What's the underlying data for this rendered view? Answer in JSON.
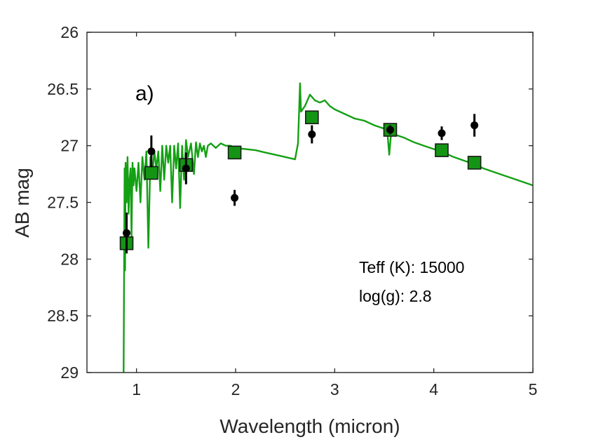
{
  "chart_data": {
    "type": "scatter",
    "panel_label": "a)",
    "xlabel": "Wavelength (micron)",
    "ylabel": "AB mag",
    "xlim": [
      0.5,
      5
    ],
    "ylim": [
      26,
      29
    ],
    "y_reversed": true,
    "grid": false,
    "xticks": [
      "1",
      "2",
      "3",
      "4",
      "5"
    ],
    "yticks": [
      "26",
      "26.5",
      "27",
      "27.5",
      "28",
      "28.5",
      "29"
    ],
    "annotations": [
      "Teff (K): 15000",
      "log(g): 2.8"
    ],
    "colors": {
      "model": "#14a014",
      "synthetic": "#149414",
      "observed": "#000000",
      "axes": "#262626"
    },
    "series": [
      {
        "type": "line",
        "color": "#14a014",
        "x": [
          0.87,
          0.88,
          0.885,
          0.89,
          0.9,
          0.91,
          0.92,
          0.93,
          0.94,
          0.95,
          0.96,
          0.97,
          0.98,
          1.0,
          1.02,
          1.04,
          1.06,
          1.08,
          1.1,
          1.12,
          1.14,
          1.16,
          1.18,
          1.2,
          1.22,
          1.24,
          1.26,
          1.28,
          1.3,
          1.32,
          1.34,
          1.36,
          1.38,
          1.4,
          1.42,
          1.44,
          1.46,
          1.48,
          1.5,
          1.52,
          1.55,
          1.58,
          1.6,
          1.62,
          1.64,
          1.66,
          1.68,
          1.7,
          1.72,
          1.75,
          1.8,
          1.85,
          1.9,
          1.95,
          2.0,
          2.1,
          2.2,
          2.3,
          2.4,
          2.5,
          2.6,
          2.63,
          2.65,
          2.66,
          2.7,
          2.75,
          2.8,
          2.85,
          2.9,
          2.95,
          3.0,
          3.1,
          3.2,
          3.3,
          3.4,
          3.5,
          3.53,
          3.55,
          3.57,
          3.6,
          3.7,
          3.8,
          3.9,
          4.0,
          4.1,
          4.2,
          4.3,
          4.4,
          4.5,
          4.6,
          4.7,
          4.8,
          4.9,
          5.0
        ],
        "y": [
          29.0,
          27.2,
          28.1,
          27.15,
          27.5,
          27.1,
          27.6,
          27.3,
          27.2,
          27.8,
          27.15,
          27.35,
          27.2,
          27.4,
          27.15,
          27.5,
          27.1,
          27.3,
          27.05,
          27.9,
          27.1,
          27.25,
          27.05,
          27.2,
          27.05,
          27.4,
          27.0,
          27.3,
          27.0,
          27.15,
          27.0,
          27.5,
          27.0,
          27.2,
          26.98,
          27.55,
          27.0,
          27.3,
          26.95,
          27.1,
          26.98,
          27.25,
          26.97,
          27.1,
          26.98,
          27.05,
          27.0,
          27.1,
          27.0,
          26.98,
          27.02,
          26.98,
          27.0,
          27.0,
          27.02,
          27.03,
          27.04,
          27.06,
          27.08,
          27.1,
          27.12,
          26.98,
          26.45,
          26.7,
          26.65,
          26.55,
          26.6,
          26.62,
          26.6,
          26.65,
          26.68,
          26.72,
          26.76,
          26.78,
          26.82,
          26.85,
          26.86,
          27.08,
          26.88,
          26.9,
          26.93,
          26.97,
          27.0,
          27.03,
          27.06,
          27.1,
          27.13,
          27.16,
          27.2,
          27.23,
          27.26,
          27.29,
          27.32,
          27.35
        ]
      },
      {
        "type": "markers",
        "marker": "square",
        "color": "#149414",
        "x": [
          0.9,
          1.15,
          1.5,
          1.99,
          2.77,
          3.56,
          4.08,
          4.41
        ],
        "y": [
          27.86,
          27.24,
          27.17,
          27.06,
          26.75,
          26.86,
          27.04,
          27.15
        ]
      },
      {
        "type": "errorbar",
        "marker": "circle",
        "color": "#000000",
        "x": [
          0.9,
          1.15,
          1.5,
          1.99,
          2.77,
          3.56,
          4.08,
          4.41
        ],
        "y": [
          27.77,
          27.05,
          27.2,
          27.46,
          26.9,
          26.86,
          26.89,
          26.82
        ],
        "err": [
          0.18,
          0.14,
          0.14,
          0.07,
          0.08,
          0.04,
          0.06,
          0.1
        ]
      }
    ]
  }
}
